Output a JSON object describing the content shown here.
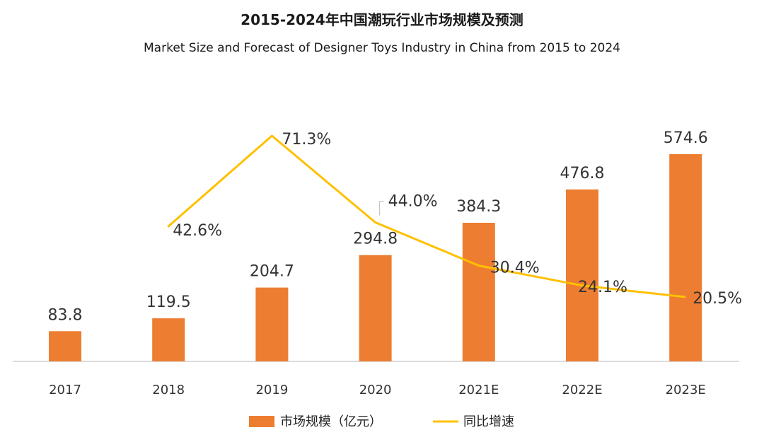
{
  "chart_data": {
    "type": "bar",
    "title": "2015-2024年中国潮玩行业市场规模及预测",
    "subtitle": "Market Size and Forecast of Designer Toys Industry in China from 2015 to 2024",
    "categories": [
      "2017",
      "2018",
      "2019",
      "2020",
      "2021E",
      "2022E",
      "2023E"
    ],
    "series": [
      {
        "name": "市场规模（亿元）",
        "kind": "bar",
        "color": "#ED7D31",
        "values": [
          83.8,
          119.5,
          204.7,
          294.8,
          384.3,
          476.8,
          574.6
        ],
        "labels": [
          "83.8",
          "119.5",
          "204.7",
          "294.8",
          "384.3",
          "476.8",
          "574.6"
        ]
      },
      {
        "name": "同比增速",
        "kind": "line",
        "color": "#FFC000",
        "values": [
          null,
          42.6,
          71.3,
          44.0,
          30.4,
          24.1,
          20.5
        ],
        "labels": [
          "",
          "42.6%",
          "71.3%",
          "44.0%",
          "30.4%",
          "24.1%",
          "20.5%"
        ]
      }
    ],
    "bar_axis": {
      "min": 0,
      "max": 700
    },
    "line_axis": {
      "min": -15,
      "max": 80
    },
    "grid": false,
    "legend_position": "bottom-center"
  }
}
